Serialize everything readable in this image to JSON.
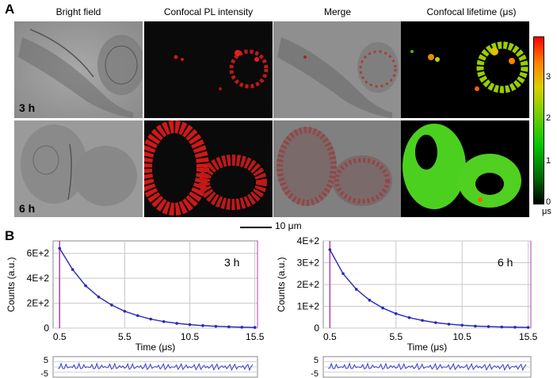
{
  "panel_a": {
    "letter": "A",
    "columns": [
      "Bright field",
      "Confocal PL intensity",
      "Merge",
      "Confocal lifetime (μs)"
    ],
    "rows": [
      "3 h",
      "6 h"
    ],
    "scale_bar": "10 μm",
    "colorbar": {
      "ticks": [
        "3",
        "2",
        "1",
        "0"
      ],
      "unit": "μs",
      "range": [
        0,
        3.8
      ]
    }
  },
  "panel_b": {
    "letter": "B",
    "ylabel": "Counts (a.u.)",
    "xlabel": "Time (μs)",
    "residual_ticks": [
      "5",
      "-5"
    ]
  },
  "chart_data": [
    {
      "type": "scatter",
      "title": "3 h",
      "xlabel": "Time (μs)",
      "ylabel": "Counts (a.u.)",
      "xlim": [
        0,
        15.7
      ],
      "ylim": [
        0,
        700
      ],
      "x_ticks": [
        "0.5",
        "5.5",
        "10.5",
        "15.5"
      ],
      "y_ticks": [
        "0",
        "2E+2",
        "4E+2",
        "6E+2"
      ],
      "grid": true,
      "series": [
        {
          "values": [
            [
              0.5,
              640
            ],
            [
              1.5,
              470
            ],
            [
              2.5,
              340
            ],
            [
              3.5,
              250
            ],
            [
              4.5,
              185
            ],
            [
              5.5,
              135
            ],
            [
              6.5,
              100
            ],
            [
              7.5,
              72
            ],
            [
              8.5,
              52
            ],
            [
              9.5,
              38
            ],
            [
              10.5,
              28
            ],
            [
              11.5,
              20
            ],
            [
              12.5,
              14
            ],
            [
              13.5,
              10
            ],
            [
              14.5,
              7
            ],
            [
              15.5,
              5
            ]
          ]
        }
      ],
      "residual_range": [
        -5,
        5
      ]
    },
    {
      "type": "scatter",
      "title": "6 h",
      "xlabel": "Time (μs)",
      "ylabel": "Counts (a.u.)",
      "xlim": [
        0,
        15.7
      ],
      "ylim": [
        0,
        400
      ],
      "x_ticks": [
        "0.5",
        "5.5",
        "10.5",
        "15.5"
      ],
      "y_ticks": [
        "0",
        "1E+2",
        "2E+2",
        "3E+2",
        "4E+2"
      ],
      "grid": true,
      "series": [
        {
          "values": [
            [
              0.5,
              360
            ],
            [
              1.5,
              250
            ],
            [
              2.5,
              178
            ],
            [
              3.5,
              128
            ],
            [
              4.5,
              92
            ],
            [
              5.5,
              66
            ],
            [
              6.5,
              48
            ],
            [
              7.5,
              35
            ],
            [
              8.5,
              25
            ],
            [
              9.5,
              18
            ],
            [
              10.5,
              13
            ],
            [
              11.5,
              9
            ],
            [
              12.5,
              7
            ],
            [
              13.5,
              5
            ],
            [
              14.5,
              4
            ],
            [
              15.5,
              3
            ]
          ]
        }
      ],
      "residual_range": [
        -5,
        5
      ]
    }
  ]
}
